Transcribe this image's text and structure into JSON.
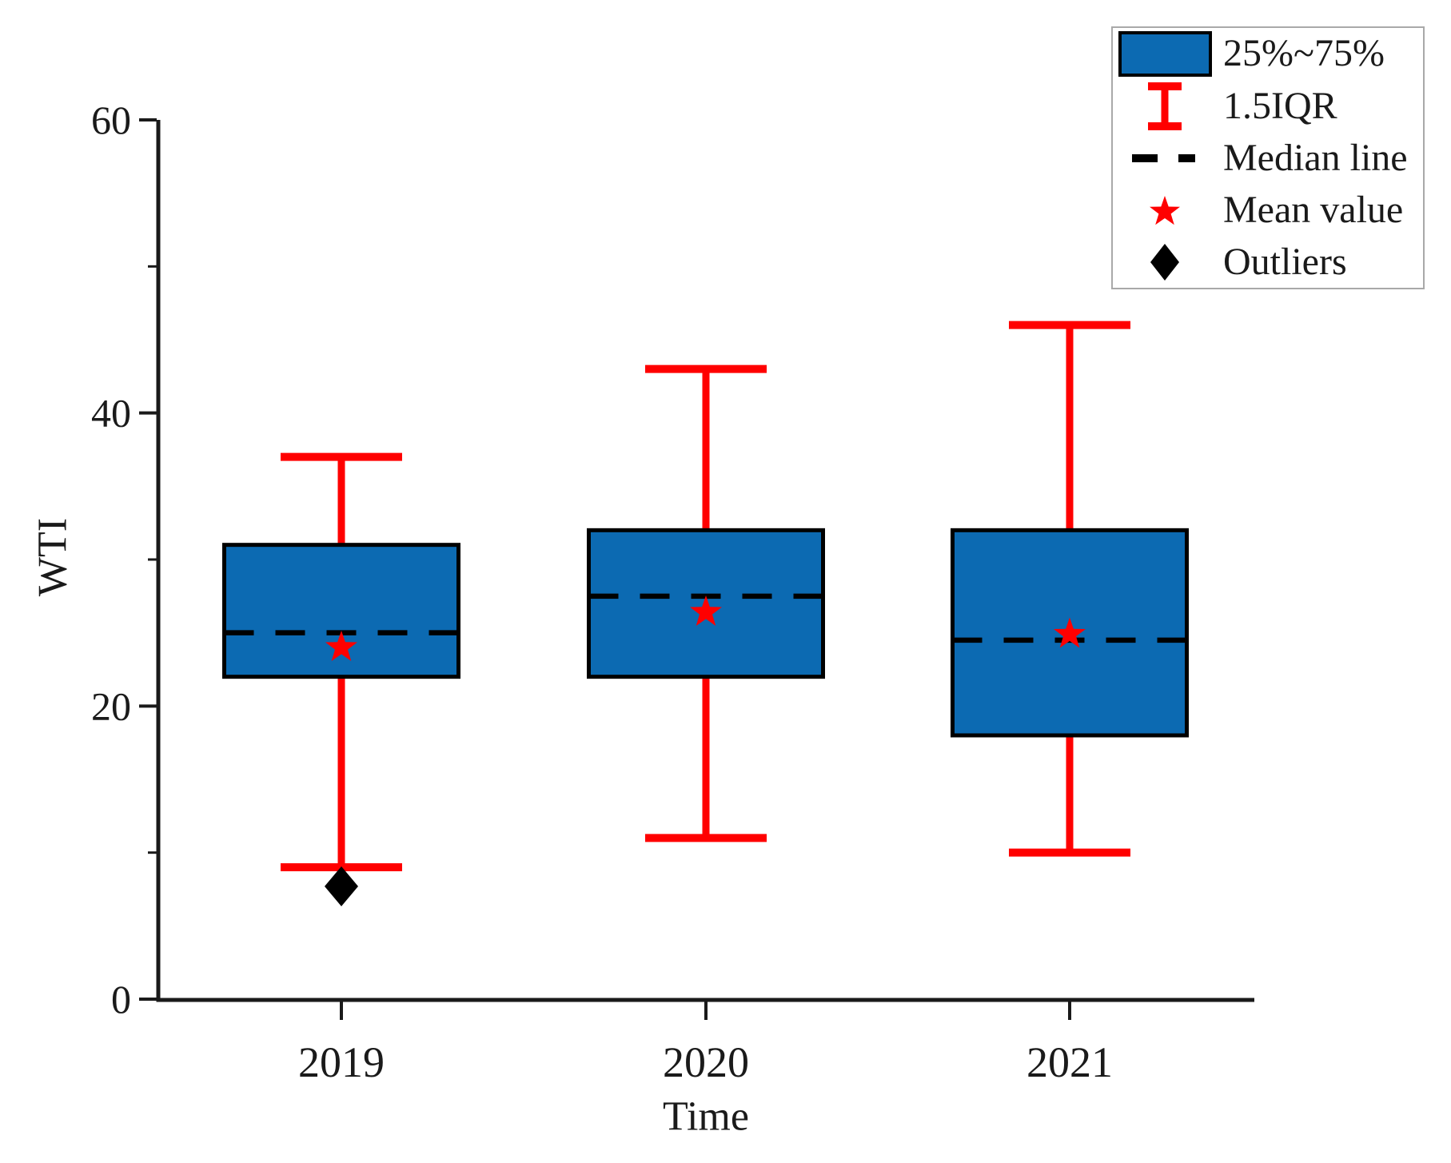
{
  "chart_data": {
    "type": "box",
    "title": "",
    "xlabel": "Time",
    "ylabel": "WTI",
    "categories": [
      "2019",
      "2020",
      "2021"
    ],
    "y_ticks": [
      0,
      20,
      40,
      60
    ],
    "y_minor_ticks": [
      10,
      30,
      50
    ],
    "ylim": [
      0,
      60
    ],
    "grid": false,
    "legend_position": "top-right",
    "series": [
      {
        "category": "2019",
        "whisker_low": 9,
        "q1": 22,
        "median": 25,
        "mean": 24,
        "q3": 31,
        "whisker_high": 37,
        "outliers": [
          7.7
        ]
      },
      {
        "category": "2020",
        "whisker_low": 11,
        "q1": 22,
        "median": 27.5,
        "mean": 26.4,
        "q3": 32,
        "whisker_high": 43,
        "outliers": []
      },
      {
        "category": "2021",
        "whisker_low": 10,
        "q1": 18,
        "median": 24.5,
        "mean": 24.9,
        "q3": 32,
        "whisker_high": 46,
        "outliers": []
      }
    ],
    "colors": {
      "box_fill": "#0c6ab2",
      "box_border": "#000000",
      "whisker": "#ff0000",
      "median_line": "#000000",
      "mean_marker": "#ff0000",
      "outlier_marker": "#000000",
      "axis": "#1a1a1a",
      "text": "#1a1a1a"
    }
  },
  "legend": {
    "items": [
      {
        "symbol": "box-swatch",
        "label": "25%~75%"
      },
      {
        "symbol": "error-bar",
        "label": "1.5IQR"
      },
      {
        "symbol": "dashed-line",
        "label": "Median line"
      },
      {
        "symbol": "star",
        "label": "Mean value"
      },
      {
        "symbol": "diamond",
        "label": "Outliers"
      }
    ]
  }
}
